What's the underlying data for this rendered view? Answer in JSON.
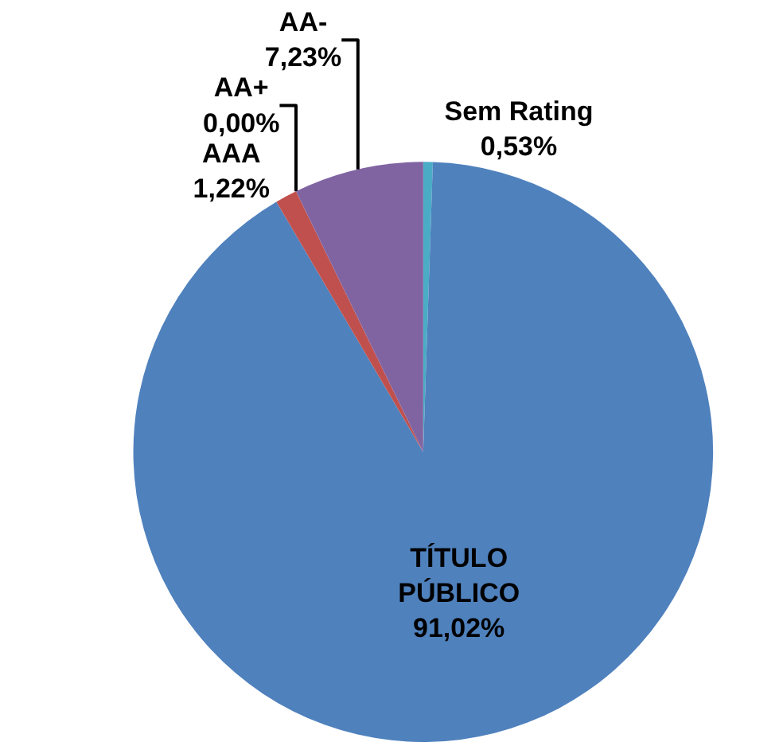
{
  "chart_data": {
    "type": "pie",
    "categories": [
      "Sem Rating",
      "TÍTULO\nPÚBLICO",
      "AAA",
      "AA+",
      "AA-"
    ],
    "values": [
      0.53,
      91.02,
      1.22,
      0.0,
      7.23
    ],
    "value_labels": [
      "0,53%",
      "91,02%",
      "1,22%",
      "0,00%",
      "7,23%"
    ],
    "colors": [
      "#4bacc6",
      "#4f81bd",
      "#c0504d",
      "#9bbb59",
      "#8064a2"
    ],
    "legend": false
  }
}
